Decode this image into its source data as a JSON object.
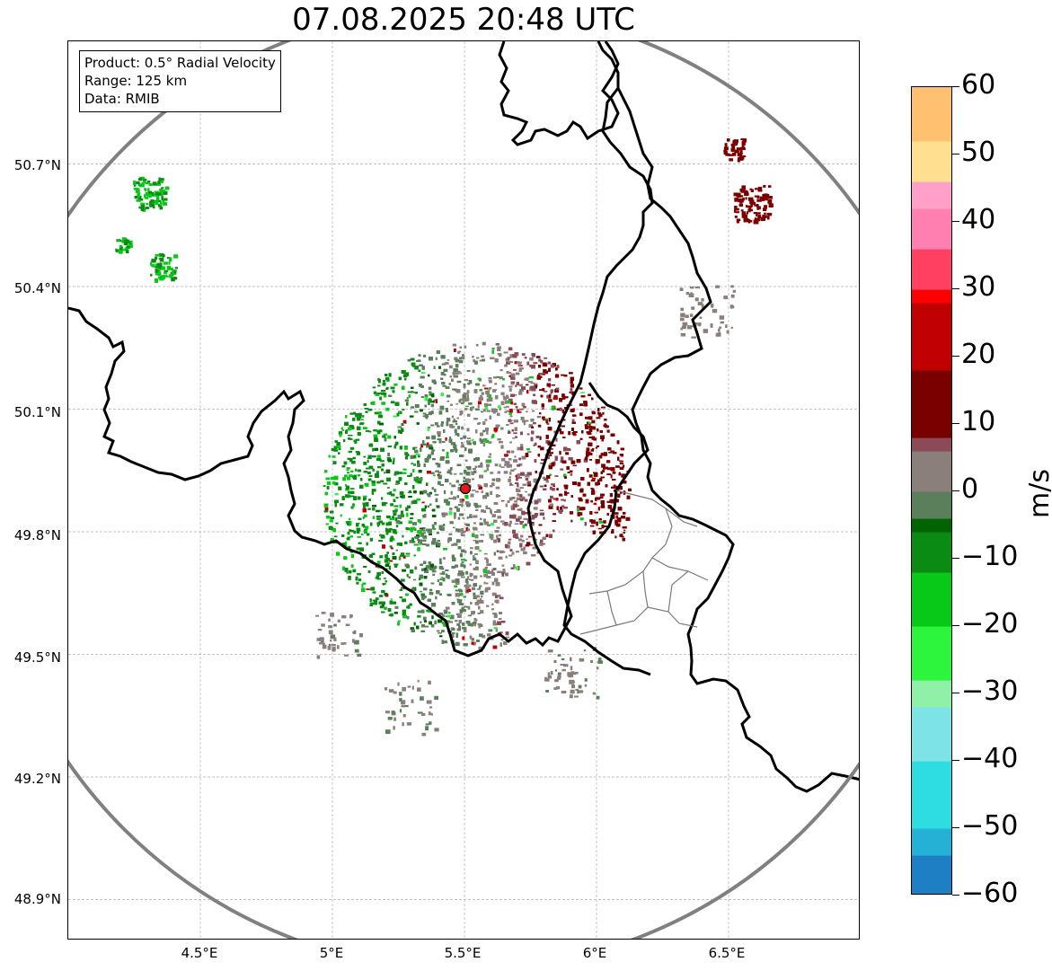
{
  "title": "07.08.2025 20:48 UTC",
  "info": {
    "product": "Product: 0.5° Radial Velocity",
    "range": "Range: 125 km",
    "data": "Data: RMIB"
  },
  "chart_data": {
    "type": "heatmap",
    "title": "07.08.2025 20:48 UTC",
    "x_axis": {
      "ticks": [
        "4.5°E",
        "5°E",
        "5.5°E",
        "6°E",
        "6.5°E"
      ],
      "tick_values": [
        4.5,
        5.0,
        5.5,
        6.0,
        6.5
      ],
      "range": [
        4.0,
        7.0
      ]
    },
    "y_axis": {
      "ticks": [
        "50.7°N",
        "50.4°N",
        "50.1°N",
        "49.8°N",
        "49.5°N",
        "49.2°N",
        "48.9°N"
      ],
      "tick_values": [
        50.7,
        50.4,
        50.1,
        49.8,
        49.5,
        49.2,
        48.9
      ],
      "range": [
        48.8,
        51.0
      ]
    },
    "radar_site": {
      "lon": 5.505,
      "lat": 49.914
    },
    "radar_range_km": 125,
    "colorbar": {
      "label": "m/s",
      "ticks": [
        "60",
        "50",
        "40",
        "30",
        "20",
        "10",
        "0",
        "−10",
        "−20",
        "−30",
        "−40",
        "−50",
        "−60"
      ],
      "tick_values": [
        60,
        50,
        40,
        30,
        20,
        10,
        0,
        -10,
        -20,
        -30,
        -40,
        -50,
        -60
      ],
      "min": -60,
      "max": 60
    }
  },
  "colors": {
    "range_ring": "#808080",
    "border": "#000000",
    "grid": "#b0b0b0",
    "radar_marker": "#e31a1c",
    "colormap_stops": [
      {
        "v": -60,
        "c": "#1f7fc4"
      },
      {
        "v": -55,
        "c": "#25b0d6"
      },
      {
        "v": -50,
        "c": "#2ddde0"
      },
      {
        "v": -40,
        "c": "#7ee3e6"
      },
      {
        "v": -33,
        "c": "#b8eef0"
      },
      {
        "v": -32,
        "c": "#90f0a8"
      },
      {
        "v": -28,
        "c": "#2cf53c"
      },
      {
        "v": -20,
        "c": "#08c818"
      },
      {
        "v": -12,
        "c": "#0a8c14"
      },
      {
        "v": -6,
        "c": "#006400"
      },
      {
        "v": -5,
        "c": "#5a7f5a"
      },
      {
        "v": 0,
        "c": "#8a7f7a"
      },
      {
        "v": 5,
        "c": "#8a4a58"
      },
      {
        "v": 8,
        "c": "#7a0000"
      },
      {
        "v": 18,
        "c": "#c00000"
      },
      {
        "v": 28,
        "c": "#ff0000"
      },
      {
        "v": 29,
        "c": "#ff4060"
      },
      {
        "v": 36,
        "c": "#ff80b0"
      },
      {
        "v": 42,
        "c": "#ffa0c8"
      },
      {
        "v": 46,
        "c": "#ffe090"
      },
      {
        "v": 52,
        "c": "#ffc070"
      },
      {
        "v": 60,
        "c": "#ff9e50"
      }
    ]
  }
}
